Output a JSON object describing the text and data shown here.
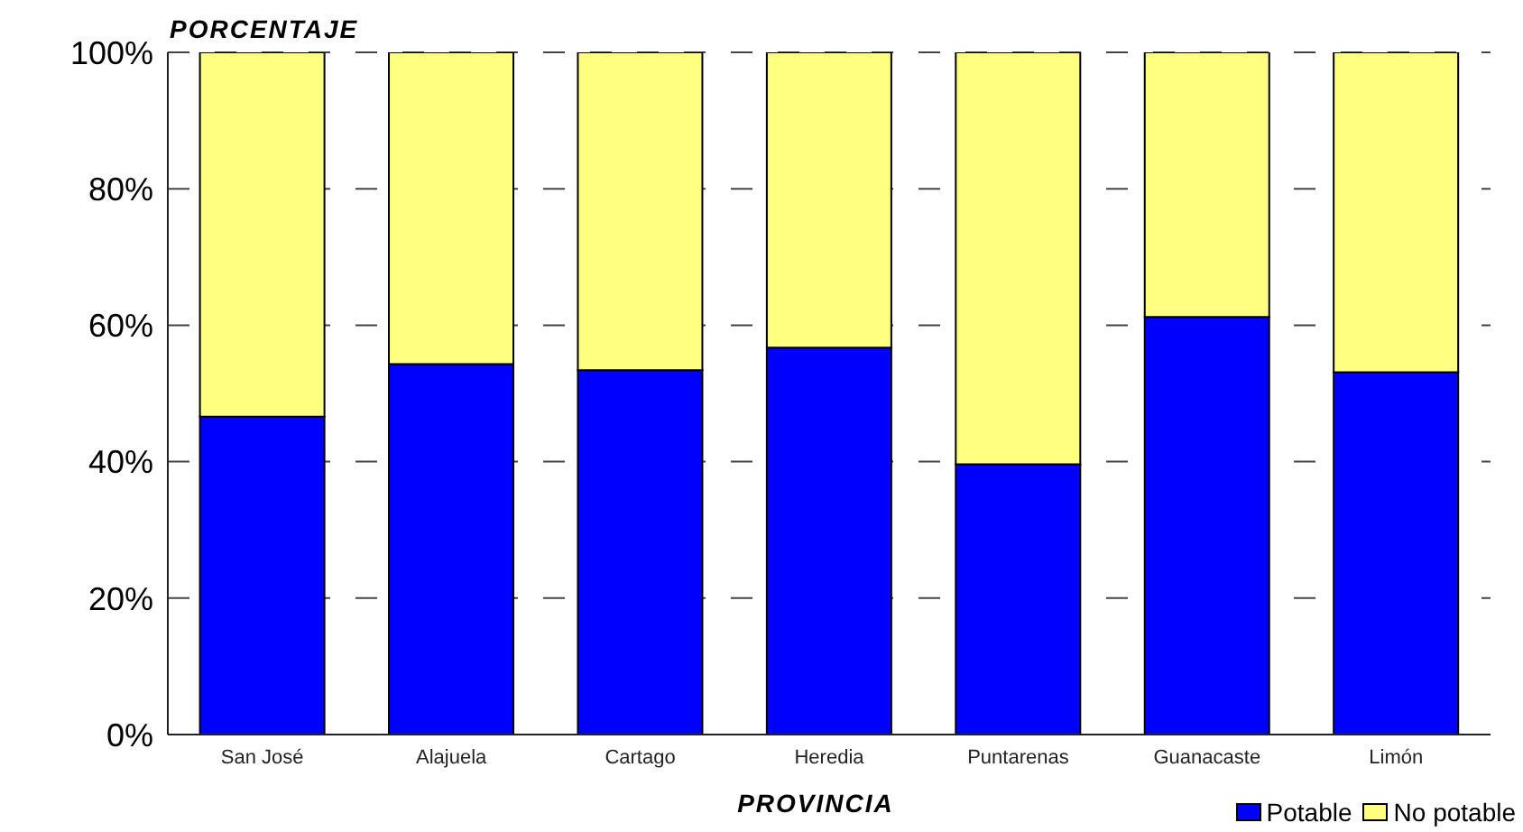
{
  "chart_data": {
    "type": "bar",
    "stacked": true,
    "xlabel": "PROVINCIA",
    "ylabel": "PORCENTAJE",
    "categories": [
      "San José",
      "Alajuela",
      "Cartago",
      "Heredia",
      "Puntarenas",
      "Guanacaste",
      "Limón"
    ],
    "series": [
      {
        "name": "Potable",
        "color": "#0000ff",
        "values": [
          46.6,
          54.3,
          53.4,
          56.7,
          39.6,
          61.2,
          53.1
        ]
      },
      {
        "name": "No potable",
        "color": "#ffff80",
        "values": [
          53.4,
          45.7,
          46.6,
          43.3,
          60.4,
          38.8,
          46.9
        ]
      }
    ],
    "ylim": [
      0,
      100
    ],
    "yticks": [
      {
        "value": 0,
        "label": "0%"
      },
      {
        "value": 20,
        "label": "20%"
      },
      {
        "value": 40,
        "label": "40%"
      },
      {
        "value": 60,
        "label": "60%"
      },
      {
        "value": 80,
        "label": "80%"
      },
      {
        "value": 100,
        "label": "100%"
      }
    ],
    "grid": "y",
    "legend": "bottom right"
  }
}
